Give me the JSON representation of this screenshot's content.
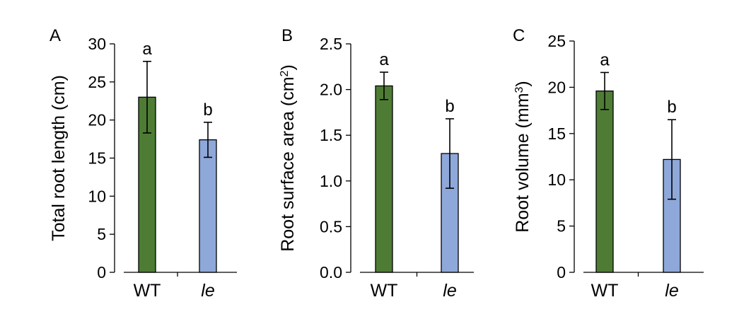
{
  "chart_data": [
    {
      "type": "bar",
      "panel_label": "A",
      "ylabel": "Total root length (cm)",
      "ylabel_sup": "",
      "ylabel_tail": "",
      "categories": [
        "WT",
        "le"
      ],
      "category_italic": [
        false,
        true
      ],
      "values": [
        23.0,
        17.4
      ],
      "errors": [
        4.7,
        2.3
      ],
      "significance": [
        "a",
        "b"
      ],
      "colors": [
        "#4e7c35",
        "#8fa8da"
      ],
      "ylim": [
        0,
        30
      ],
      "yticks": [
        0,
        5,
        10,
        15,
        20,
        25,
        30
      ],
      "ytick_labels": [
        "0",
        "5",
        "10",
        "15",
        "20",
        "25",
        "30"
      ]
    },
    {
      "type": "bar",
      "panel_label": "B",
      "ylabel": "Root surface area (cm",
      "ylabel_sup": "2",
      "ylabel_tail": ")",
      "categories": [
        "WT",
        "le"
      ],
      "category_italic": [
        false,
        true
      ],
      "values": [
        2.04,
        1.3
      ],
      "errors": [
        0.15,
        0.38
      ],
      "significance": [
        "a",
        "b"
      ],
      "colors": [
        "#4e7c35",
        "#8fa8da"
      ],
      "ylim": [
        0,
        2.5
      ],
      "yticks": [
        0,
        0.5,
        1.0,
        1.5,
        2.0,
        2.5
      ],
      "ytick_labels": [
        "0.0",
        "0.5",
        "1.0",
        "1.5",
        "2.0",
        "2.5"
      ]
    },
    {
      "type": "bar",
      "panel_label": "C",
      "ylabel": "Root volume (mm",
      "ylabel_sup": "3",
      "ylabel_tail": ")",
      "categories": [
        "WT",
        "le"
      ],
      "category_italic": [
        false,
        true
      ],
      "values": [
        19.6,
        12.2
      ],
      "errors": [
        2.0,
        4.3
      ],
      "significance": [
        "a",
        "b"
      ],
      "colors": [
        "#4e7c35",
        "#8fa8da"
      ],
      "ylim": [
        0,
        25
      ],
      "yticks": [
        0,
        5,
        10,
        15,
        20,
        25
      ],
      "ytick_labels": [
        "0",
        "5",
        "10",
        "15",
        "20",
        "25"
      ]
    }
  ]
}
